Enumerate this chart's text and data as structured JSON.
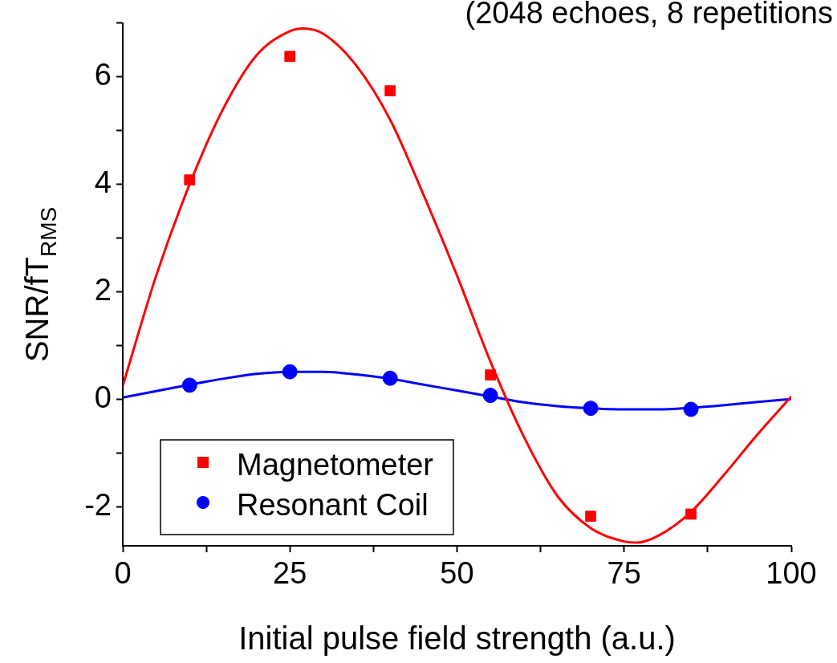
{
  "chart_data": {
    "type": "scatter",
    "title": "(2048 echoes, 8 repetitions",
    "xlabel": "Initial pulse field strength (a.u.)",
    "ylabel": "SNR/fT$_{RMS}$",
    "xlim": [
      0,
      100
    ],
    "xticks": [
      0,
      {
        "value": 12.5,
        "label": null
      },
      25,
      {
        "value": 37.5,
        "label": null
      },
      50,
      {
        "value": 62.5,
        "label": null
      },
      75,
      {
        "value": 87.5,
        "label": null
      },
      100
    ],
    "ylim": [
      -2.73,
      7
    ],
    "yticks": [
      -2,
      {
        "value": -1,
        "label": null
      },
      0,
      {
        "value": 1,
        "label": null
      },
      2,
      {
        "value": 3,
        "label": null
      },
      4,
      {
        "value": 5,
        "label": null
      },
      6,
      {
        "value": 7,
        "label": null
      }
    ],
    "grid": false,
    "legend": "bottom left",
    "series": [
      {
        "name": "Magnetometer",
        "color": "#ff0000",
        "marker": "square",
        "x": [
          10,
          25,
          40,
          55,
          70,
          85
        ],
        "values": [
          4.08,
          6.38,
          5.74,
          0.45,
          -2.18,
          -2.14
        ]
      },
      {
        "name": "Resonant Coil",
        "color": "#0000ff",
        "marker": "circle",
        "x": [
          10,
          25,
          40,
          55,
          70,
          85
        ],
        "values": [
          0.26,
          0.51,
          0.39,
          0.07,
          -0.17,
          -0.19
        ]
      },
      {
        "type": "line",
        "color": "#ff0000",
        "marker": "none",
        "x": [
          0,
          5,
          10,
          15,
          20,
          25,
          27,
          30,
          35,
          40,
          45,
          50,
          55,
          60,
          65,
          70,
          75,
          77,
          80,
          85,
          90,
          95,
          100
        ],
        "values": [
          0.25,
          2.3,
          4.0,
          5.4,
          6.4,
          6.85,
          6.9,
          6.8,
          6.2,
          5.2,
          3.8,
          2.3,
          0.7,
          -0.7,
          -1.8,
          -2.4,
          -2.65,
          -2.67,
          -2.55,
          -2.1,
          -1.4,
          -0.65,
          0.05
        ]
      },
      {
        "type": "line",
        "color": "#0000ff",
        "marker": "none",
        "x": [
          0,
          5,
          10,
          15,
          20,
          25,
          30,
          35,
          40,
          45,
          50,
          55,
          60,
          65,
          70,
          75,
          80,
          85,
          90,
          95,
          100
        ],
        "values": [
          0.03,
          0.15,
          0.27,
          0.38,
          0.47,
          0.51,
          0.51,
          0.46,
          0.38,
          0.27,
          0.16,
          0.05,
          -0.06,
          -0.13,
          -0.17,
          -0.19,
          -0.19,
          -0.16,
          -0.11,
          -0.05,
          0.0
        ]
      }
    ]
  }
}
